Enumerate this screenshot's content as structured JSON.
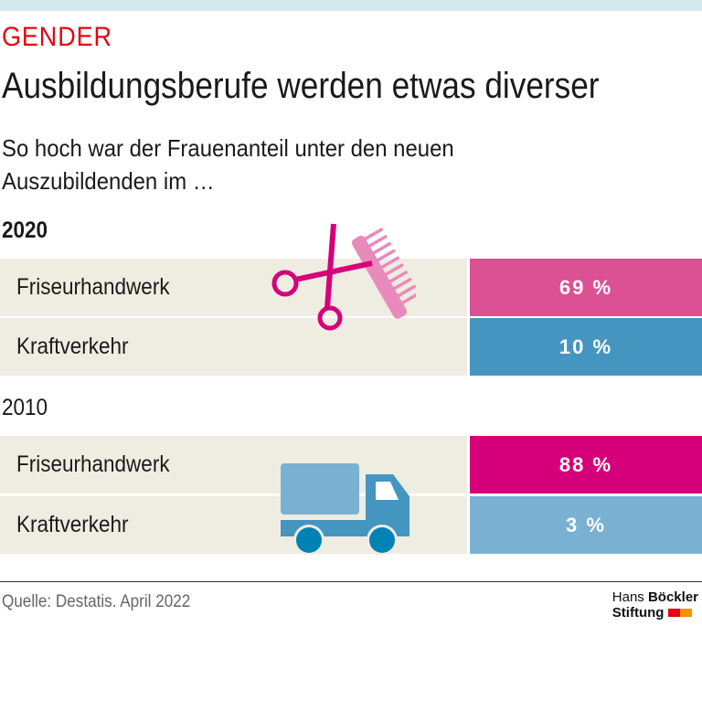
{
  "header": {
    "kicker": "GENDER",
    "title": "Ausbildungsberufe werden etwas diverser",
    "subtitle": "So hoch war der Frauenanteil unter den neuen Auszubildenden im …"
  },
  "chart_data": {
    "type": "table",
    "groups": [
      {
        "year": "2020",
        "rows": [
          {
            "label": "Friseurhandwerk",
            "value": 69,
            "text": "69 %",
            "color": "#dc5094"
          },
          {
            "label": "Kraftverkehr",
            "value": 10,
            "text": "10 %",
            "color": "#4496c1"
          }
        ]
      },
      {
        "year": "2010",
        "rows": [
          {
            "label": "Friseurhandwerk",
            "value": 88,
            "text": "88 %",
            "color": "#d6007b"
          },
          {
            "label": "Kraftverkehr",
            "value": 3,
            "text": "3 %",
            "color": "#7ab1d3"
          }
        ]
      }
    ]
  },
  "icons": [
    "scissors-icon",
    "comb-icon",
    "truck-icon"
  ],
  "footer": {
    "source": "Quelle: Destatis. April 2022",
    "logo_line1a": "Hans ",
    "logo_line1b": "Böckler",
    "logo_line2": "Stiftung"
  },
  "colors": {
    "kicker": "#e30613",
    "label_bg": "#efece2"
  }
}
